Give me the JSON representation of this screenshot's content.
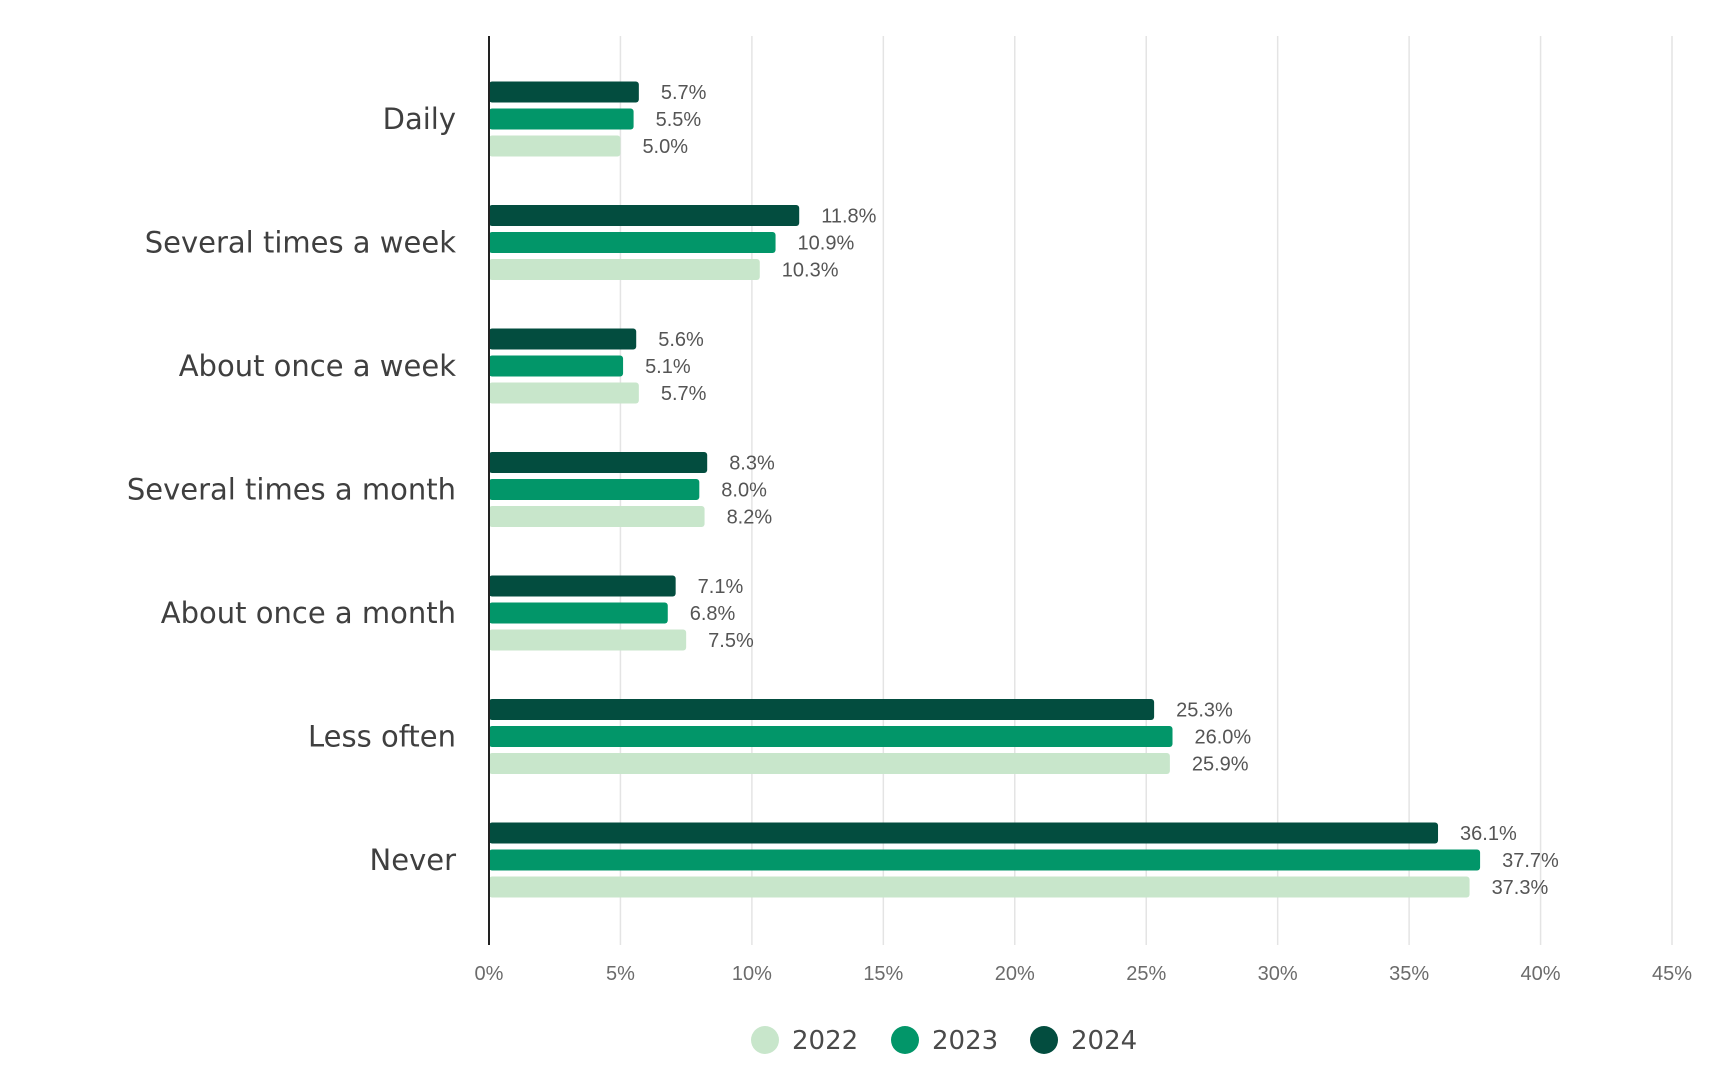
{
  "chart_data": {
    "type": "bar",
    "orientation": "horizontal",
    "categories": [
      "Daily",
      "Several times a week",
      "About once a week",
      "Several times a month",
      "About once a month",
      "Less often",
      "Never"
    ],
    "series": [
      {
        "name": "2024",
        "color": "#034d3f",
        "values": [
          5.7,
          11.8,
          5.6,
          8.3,
          7.1,
          25.3,
          36.1
        ]
      },
      {
        "name": "2023",
        "color": "#029669",
        "values": [
          5.5,
          10.9,
          5.1,
          8.0,
          6.8,
          26.0,
          37.7
        ]
      },
      {
        "name": "2022",
        "color": "#c8e6cb",
        "values": [
          5.0,
          10.3,
          5.7,
          8.2,
          7.5,
          25.9,
          37.3
        ]
      }
    ],
    "data_labels": [
      [
        "5.7%",
        "11.8%",
        "5.6%",
        "8.3%",
        "7.1%",
        "25.3%",
        "36.1%"
      ],
      [
        "5.5%",
        "10.9%",
        "5.1%",
        "8.0%",
        "6.8%",
        "26.0%",
        "37.7%"
      ],
      [
        "5.0%",
        "10.3%",
        "5.7%",
        "8.2%",
        "7.5%",
        "25.9%",
        "37.3%"
      ]
    ],
    "xlim": [
      0,
      45
    ],
    "x_ticks": [
      0,
      5,
      10,
      15,
      20,
      25,
      30,
      35,
      40,
      45
    ],
    "x_tick_labels": [
      "0%",
      "5%",
      "10%",
      "15%",
      "20%",
      "25%",
      "30%",
      "35%",
      "40%",
      "45%"
    ],
    "grid": "vertical",
    "legend": {
      "position": "bottom-center",
      "items": [
        {
          "label": "2022",
          "color": "#c8e6cb"
        },
        {
          "label": "2023",
          "color": "#029669"
        },
        {
          "label": "2024",
          "color": "#034d3f"
        }
      ]
    }
  }
}
